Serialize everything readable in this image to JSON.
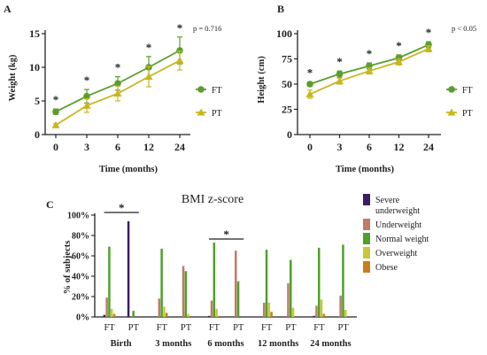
{
  "panels": {
    "a": {
      "letter": "A",
      "p_value": "p = 0.716"
    },
    "b": {
      "letter": "B",
      "p_value": "p < 0.05"
    },
    "c": {
      "letter": "C"
    }
  },
  "chart_data": [
    {
      "id": "weight",
      "type": "line",
      "xlabel": "Time (months)",
      "ylabel": "Weight (kg)",
      "x": [
        0,
        3,
        6,
        12,
        24
      ],
      "x_tick_labels": [
        "0",
        "3",
        "6",
        "12",
        "24"
      ],
      "ylim": [
        0,
        15
      ],
      "y_ticks": [
        0,
        5,
        10,
        15
      ],
      "series": [
        {
          "name": "FT",
          "color": "#5a9e2c",
          "marker": "circle",
          "values": [
            3.4,
            5.7,
            7.6,
            10.0,
            12.5
          ],
          "error": [
            0.4,
            1.0,
            1.0,
            1.6,
            2.0
          ]
        },
        {
          "name": "PT",
          "color": "#c9b61f",
          "marker": "triangle",
          "values": [
            1.4,
            4.3,
            6.1,
            8.6,
            11.0
          ],
          "error": [
            0.2,
            1.0,
            1.1,
            1.5,
            1.4
          ]
        }
      ],
      "significance": [
        "*",
        "*",
        "*",
        "*",
        "*"
      ],
      "p_value": "p = 0.716",
      "legend_position": "right"
    },
    {
      "id": "height",
      "type": "line",
      "xlabel": "Time (months)",
      "ylabel": "Height (cm)",
      "x": [
        0,
        3,
        6,
        12,
        24
      ],
      "x_tick_labels": [
        "0",
        "3",
        "6",
        "12",
        "24"
      ],
      "ylim": [
        0,
        100
      ],
      "y_ticks": [
        0,
        25,
        50,
        75,
        100
      ],
      "series": [
        {
          "name": "FT",
          "color": "#5a9e2c",
          "marker": "circle",
          "values": [
            50,
            60,
            68,
            76,
            89
          ],
          "error": [
            2,
            3,
            3,
            3,
            3
          ]
        },
        {
          "name": "PT",
          "color": "#c9b61f",
          "marker": "triangle",
          "values": [
            40,
            53,
            63,
            72,
            85
          ],
          "error": [
            4,
            3,
            3,
            3,
            3
          ]
        }
      ],
      "significance": [
        "*",
        "*",
        "*",
        "*",
        "*"
      ],
      "p_value": "p < 0.05",
      "legend_position": "right"
    },
    {
      "id": "bmi",
      "type": "bar",
      "title": "BMI z-score",
      "ylabel": "% of subjects",
      "ylim": [
        0,
        100
      ],
      "y_ticks": [
        0,
        20,
        40,
        60,
        80,
        100
      ],
      "y_tick_labels": [
        "0%",
        "20%",
        "40%",
        "60%",
        "80%",
        "100%"
      ],
      "groups": [
        "Birth",
        "3 months",
        "6 months",
        "12 months",
        "24 months"
      ],
      "subgroups": [
        "FT",
        "PT"
      ],
      "series": [
        {
          "name": "Severe underweight",
          "color": "#3b1d63",
          "values": [
            2,
            94,
            0,
            0,
            1,
            0,
            0,
            0,
            1,
            0
          ]
        },
        {
          "name": "Underweight",
          "color": "#c07a66",
          "values": [
            19,
            0,
            18,
            50,
            16,
            65,
            14,
            33,
            11,
            21
          ]
        },
        {
          "name": "Normal weight",
          "color": "#4ea12a",
          "values": [
            69,
            6,
            67,
            45,
            73,
            35,
            66,
            56,
            68,
            71
          ]
        },
        {
          "name": "Overweight",
          "color": "#c9c63a",
          "values": [
            8,
            0,
            10,
            3,
            8,
            0,
            14,
            9,
            17,
            7
          ]
        },
        {
          "name": "Obese",
          "color": "#c77e1a",
          "values": [
            3,
            0,
            4,
            0,
            1,
            0,
            5,
            0,
            3,
            0
          ]
        }
      ],
      "significance": [
        {
          "group": "Birth",
          "label": "*"
        },
        {
          "group": "6 months",
          "label": "*"
        }
      ],
      "legend_position": "right"
    }
  ]
}
